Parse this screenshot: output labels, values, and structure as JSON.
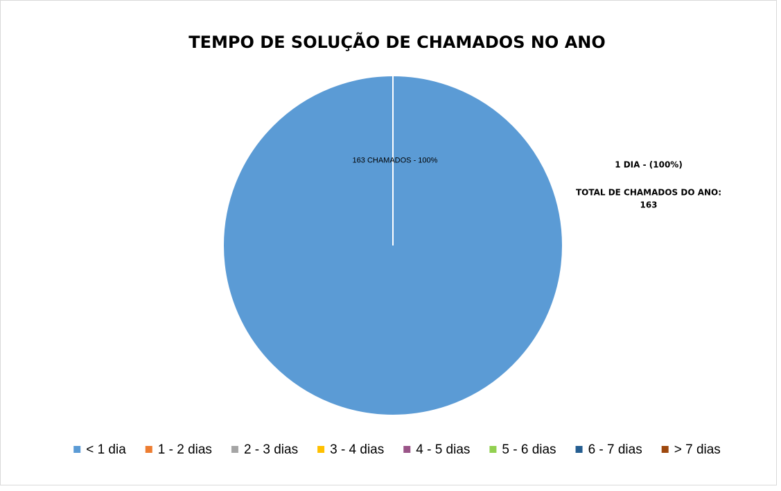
{
  "chart_data": {
    "type": "pie",
    "title": "TEMPO DE SOLUÇÃO DE CHAMADOS NO ANO",
    "categories": [
      "< 1 dia",
      "1 - 2 dias",
      "2 - 3 dias",
      "3 - 4 dias",
      "4 - 5 dias",
      "5 - 6 dias",
      "6 - 7 dias",
      "> 7 dias"
    ],
    "values": [
      163,
      0,
      0,
      0,
      0,
      0,
      0,
      0
    ],
    "value_labels": [
      "163  CHAMADOS - 100%",
      null,
      null,
      null,
      null,
      null,
      null,
      null
    ],
    "colors": [
      "#5b9bd5",
      "#ed7d31",
      "#a5a5a5",
      "#ffc000",
      "#9a5488",
      "#92d050",
      "#255e91",
      "#9e480e"
    ],
    "annotations": [
      "1 DIA - (100%)",
      "TOTAL DE CHAMADOS DO ANO:",
      "163"
    ],
    "legend": "bottom"
  }
}
